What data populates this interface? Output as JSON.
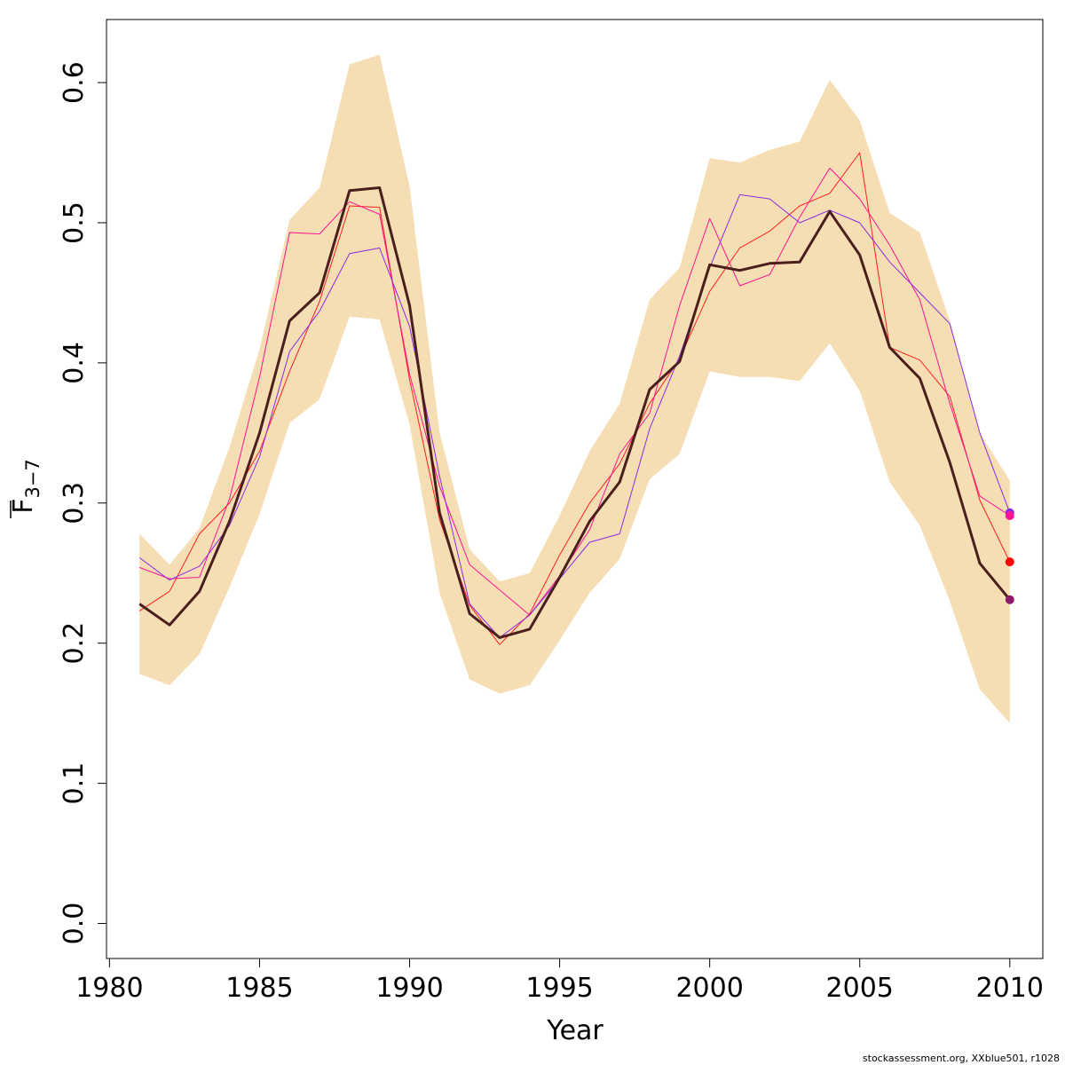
{
  "chart_data": {
    "type": "line",
    "xlabel": "Year",
    "ylabel": {
      "base": "F",
      "subscript": "3−7"
    },
    "xlim": [
      1979.9,
      2011.1
    ],
    "ylim": [
      -0.025,
      0.645
    ],
    "x_ticks": [
      {
        "value": 1980,
        "label": "1980"
      },
      {
        "value": 1985,
        "label": "1985"
      },
      {
        "value": 1990,
        "label": "1990"
      },
      {
        "value": 1995,
        "label": "1995"
      },
      {
        "value": 2000,
        "label": "2000"
      },
      {
        "value": 2005,
        "label": "2005"
      },
      {
        "value": 2010,
        "label": "2010"
      }
    ],
    "y_ticks": [
      {
        "value": 0.0,
        "label": "0.0"
      },
      {
        "value": 0.1,
        "label": "0.1"
      },
      {
        "value": 0.2,
        "label": "0.2"
      },
      {
        "value": 0.3,
        "label": "0.3"
      },
      {
        "value": 0.4,
        "label": "0.4"
      },
      {
        "value": 0.5,
        "label": "0.5"
      },
      {
        "value": 0.6,
        "label": "0.6"
      }
    ],
    "grid": false,
    "legend": "none",
    "x": [
      1981,
      1982,
      1983,
      1984,
      1985,
      1986,
      1987,
      1988,
      1989,
      1990,
      1991,
      1992,
      1993,
      1994,
      1995,
      1996,
      1997,
      1998,
      1999,
      2000,
      2001,
      2002,
      2003,
      2004,
      2005,
      2006,
      2007,
      2008,
      2009,
      2010
    ],
    "confidence_band": {
      "color": "#f5deb3",
      "lower": [
        0.178,
        0.17,
        0.192,
        0.24,
        0.292,
        0.357,
        0.374,
        0.433,
        0.431,
        0.356,
        0.236,
        0.174,
        0.164,
        0.17,
        0.202,
        0.236,
        0.26,
        0.317,
        0.335,
        0.394,
        0.39,
        0.39,
        0.387,
        0.414,
        0.38,
        0.315,
        0.284,
        0.23,
        0.167,
        0.143
      ],
      "upper": [
        0.278,
        0.256,
        0.282,
        0.34,
        0.41,
        0.502,
        0.525,
        0.613,
        0.62,
        0.526,
        0.35,
        0.267,
        0.244,
        0.25,
        0.291,
        0.337,
        0.371,
        0.445,
        0.468,
        0.546,
        0.543,
        0.552,
        0.558,
        0.602,
        0.573,
        0.507,
        0.493,
        0.43,
        0.35,
        0.316
      ]
    },
    "series": [
      {
        "color": "#4b1e1e",
        "width": 3,
        "end_point": false,
        "values": [
          0.228,
          0.213,
          0.237,
          0.287,
          0.35,
          0.43,
          0.45,
          0.523,
          0.525,
          0.441,
          0.293,
          0.221,
          0.204,
          0.21,
          0.247,
          0.287,
          0.315,
          0.381,
          0.401,
          0.47,
          0.466,
          0.471,
          0.472,
          0.508,
          0.477,
          0.411,
          0.389,
          0.329,
          0.257,
          0.231
        ]
      },
      {
        "color": "#ff2020",
        "width": 1,
        "end_point": true,
        "values": [
          0.223,
          0.237,
          0.278,
          0.3,
          0.337,
          0.394,
          0.444,
          0.512,
          0.511,
          0.388,
          0.288,
          0.227,
          0.199,
          0.221,
          0.263,
          0.3,
          0.328,
          0.371,
          0.403,
          0.451,
          0.482,
          0.494,
          0.512,
          0.521,
          0.55,
          0.411,
          0.402,
          0.376,
          0.302,
          0.258
        ]
      },
      {
        "color": "#ff1493",
        "width": 1,
        "end_point": true,
        "values": [
          0.254,
          0.246,
          0.247,
          0.303,
          0.39,
          0.493,
          0.492,
          0.515,
          0.506,
          0.392,
          0.312,
          0.256,
          0.238,
          0.22,
          0.248,
          0.281,
          0.335,
          0.364,
          0.441,
          0.503,
          0.455,
          0.463,
          0.504,
          0.539,
          0.517,
          0.484,
          0.445,
          0.371,
          0.305,
          0.291
        ]
      },
      {
        "color": "#8b2be2",
        "width": 1,
        "end_point": true,
        "values": [
          0.261,
          0.245,
          0.255,
          0.284,
          0.333,
          0.408,
          0.437,
          0.478,
          0.482,
          0.426,
          0.319,
          0.228,
          0.204,
          0.22,
          0.246,
          0.272,
          0.278,
          0.353,
          0.405,
          0.468,
          0.52,
          0.517,
          0.5,
          0.509,
          0.5,
          0.472,
          0.45,
          0.428,
          0.35,
          0.293
        ]
      }
    ],
    "end_points": [
      {
        "color": "#8b2be2",
        "value": 0.293
      },
      {
        "color": "#ff1493",
        "value": 0.291
      },
      {
        "color": "#ff0000",
        "value": 0.258
      },
      {
        "color": "#8b1a6b",
        "value": 0.231
      }
    ]
  },
  "footer": "stockassessment.org, XXblue501, r1028"
}
